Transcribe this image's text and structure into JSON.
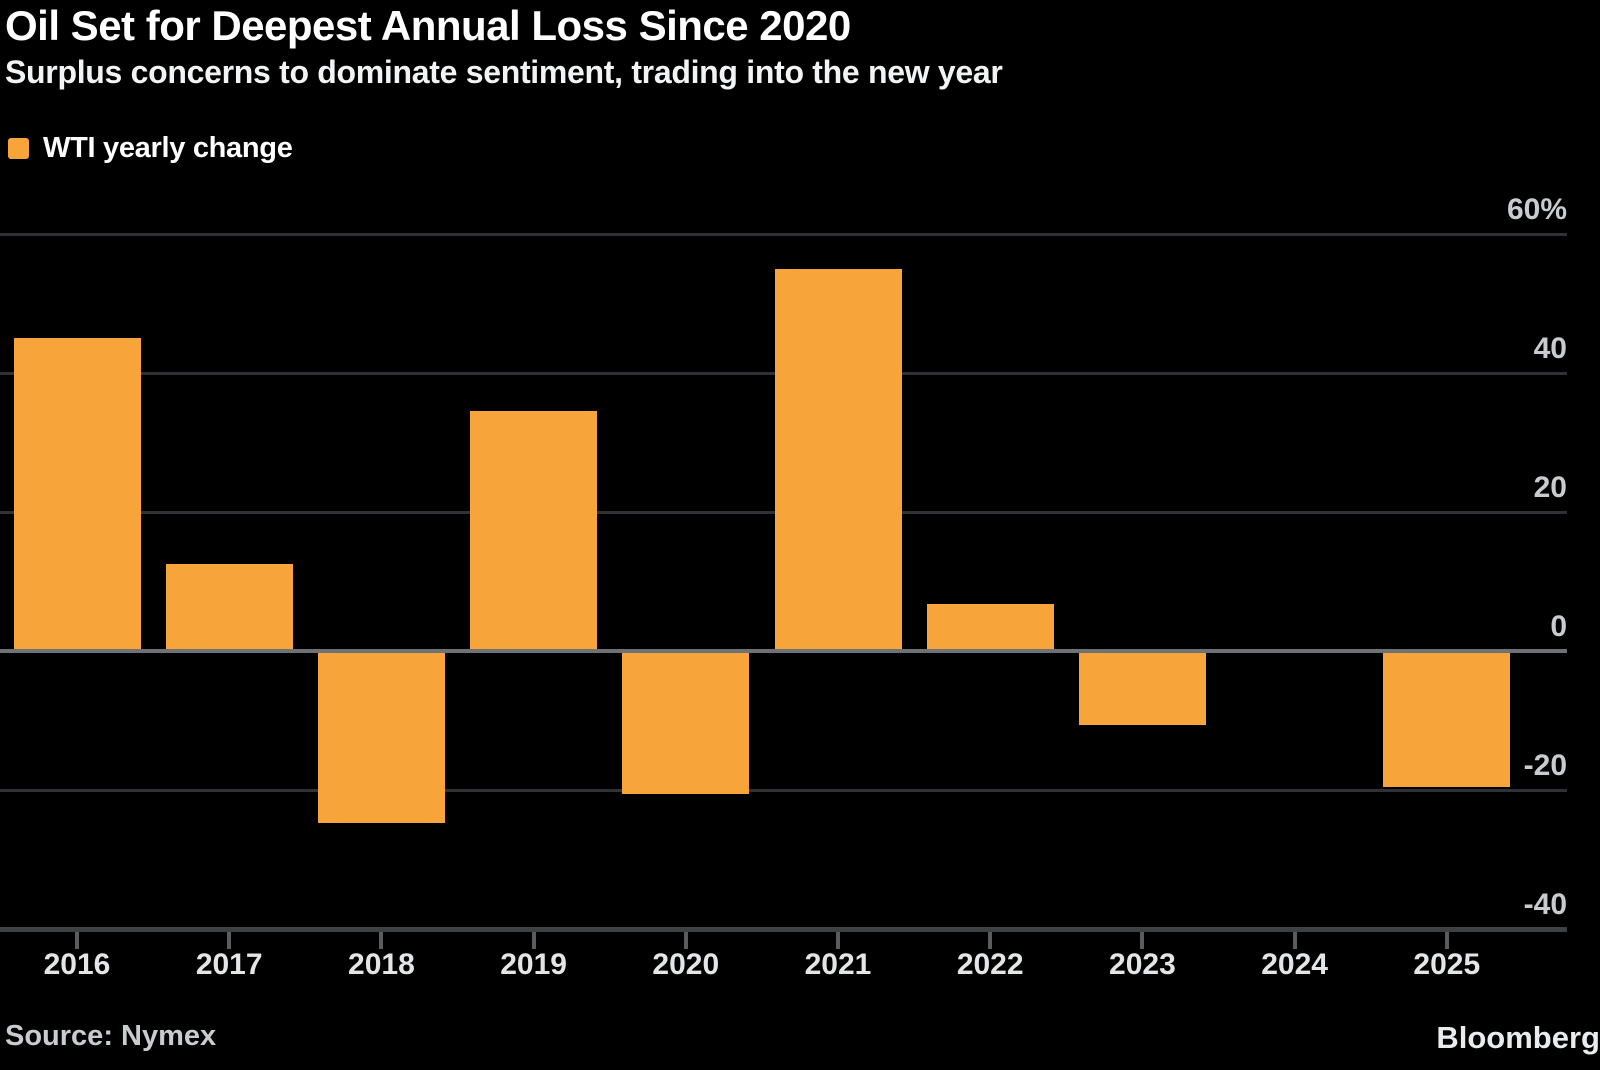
{
  "header": {
    "title": "Oil Set for Deepest Annual Loss Since 2020",
    "subtitle": "Surplus concerns to dominate sentiment, trading into the new year"
  },
  "legend": {
    "label": "WTI yearly change",
    "swatch_color": "#F7A43A"
  },
  "footer": {
    "source": "Source: Nymex",
    "brand": "Bloomberg"
  },
  "colors": {
    "background": "#000000",
    "bar": "#F7A43A",
    "gridline": "#2F3234",
    "zero_line": "#6F7274",
    "axis_line": "#3E4143",
    "tick": "#5A5D5F",
    "ytick_label": "#C9CCCE",
    "year_label": "#E3E5E7",
    "title": "#FFFFFF",
    "subtitle": "#F2F3F4",
    "source": "#C9CCCE",
    "brand": "#E9EBEC"
  },
  "chart_data": {
    "type": "bar",
    "title": "Oil Set for Deepest Annual Loss Since 2020",
    "subtitle": "Surplus concerns to dominate sentiment, trading into the new year",
    "legend_entries": [
      "WTI yearly change"
    ],
    "legend_position": "top-left",
    "grid": true,
    "categories": [
      "2016",
      "2017",
      "2018",
      "2019",
      "2020",
      "2021",
      "2022",
      "2023",
      "2024",
      "2025"
    ],
    "values": [
      45.0,
      12.5,
      -24.8,
      34.5,
      -20.5,
      55.0,
      6.7,
      -10.7,
      0.1,
      -19.5
    ],
    "unit": "%",
    "xlabel": "",
    "ylabel": "",
    "ylim": [
      -40,
      60
    ],
    "yticks": [
      60,
      40,
      20,
      0,
      -20,
      -40
    ],
    "ytick_labels": [
      "60%",
      "40",
      "20",
      "0",
      "-20",
      "-40"
    ]
  }
}
